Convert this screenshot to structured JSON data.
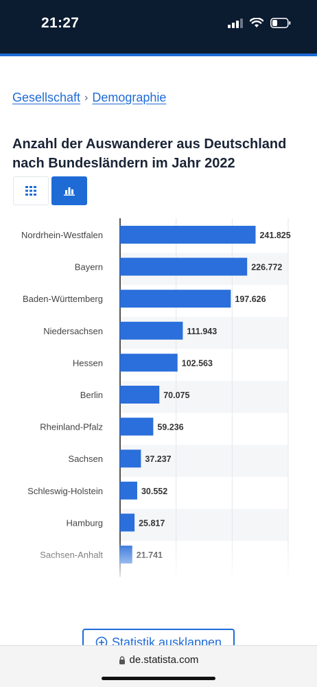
{
  "status_bar": {
    "time": "21:27"
  },
  "breadcrumb": {
    "items": [
      "Gesellschaft",
      "Demographie"
    ],
    "separator": "›"
  },
  "page": {
    "title": "Anzahl der Auswanderer aus Deutschland nach Bundesländern im Jahr 2022"
  },
  "view_toggle": {
    "options": [
      "table-icon",
      "bar-chart-icon"
    ],
    "active": "bar-chart-icon"
  },
  "chart_data": {
    "type": "bar",
    "orientation": "horizontal",
    "categories": [
      "Nordrhein-Westfalen",
      "Bayern",
      "Baden-Württemberg",
      "Niedersachsen",
      "Hessen",
      "Berlin",
      "Rheinland-Pfalz",
      "Sachsen",
      "Schleswig-Holstein",
      "Hamburg",
      "Sachsen-Anhalt"
    ],
    "values": [
      241825,
      226772,
      197626,
      111943,
      102563,
      70075,
      59236,
      37237,
      30552,
      25817,
      21741
    ],
    "value_labels": [
      "241.825",
      "226.772",
      "197.626",
      "111.943",
      "102.563",
      "70.075",
      "59.236",
      "37.237",
      "30.552",
      "25.817",
      "21.741"
    ],
    "xlim": [
      0,
      300000
    ],
    "grid": true,
    "bar_color": "#2a6fdb"
  },
  "actions": {
    "expand_label": "Statistik ausklappen"
  },
  "browser": {
    "url": "de.statista.com"
  },
  "colors": {
    "accent": "#1e6bd6",
    "status_bar_bg": "#0b1b30"
  }
}
